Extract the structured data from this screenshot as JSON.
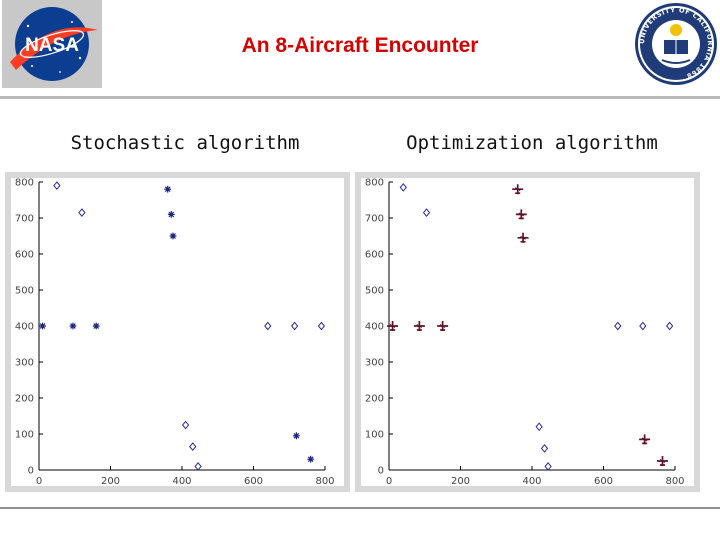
{
  "slide": {
    "title": "An 8-Aircraft Encounter",
    "logo_left_text": "NASA",
    "logo_right_text": "UNIVERSITY OF CALIFORNIA 1868"
  },
  "colors": {
    "title": "#d40000",
    "nasa_blue": "#0b3d91",
    "nasa_red": "#fc3d21",
    "marker_blue": "#1a237e",
    "marker_dark_red": "#6b0f1a"
  },
  "chart_data": [
    {
      "type": "scatter",
      "title": "Stochastic algorithm",
      "xlim": [
        0,
        800
      ],
      "ylim": [
        0,
        800
      ],
      "xticks": [
        0,
        200,
        400,
        600,
        800
      ],
      "yticks": [
        0,
        100,
        200,
        300,
        400,
        500,
        600,
        700,
        800
      ],
      "grid": false,
      "points": [
        {
          "x": 50,
          "y": 790,
          "marker": "diamond"
        },
        {
          "x": 120,
          "y": 715,
          "marker": "diamond"
        },
        {
          "x": 10,
          "y": 400,
          "marker": "star"
        },
        {
          "x": 95,
          "y": 400,
          "marker": "star"
        },
        {
          "x": 160,
          "y": 400,
          "marker": "star"
        },
        {
          "x": 360,
          "y": 780,
          "marker": "star"
        },
        {
          "x": 370,
          "y": 710,
          "marker": "star"
        },
        {
          "x": 375,
          "y": 650,
          "marker": "star"
        },
        {
          "x": 640,
          "y": 400,
          "marker": "diamond"
        },
        {
          "x": 715,
          "y": 400,
          "marker": "diamond"
        },
        {
          "x": 790,
          "y": 400,
          "marker": "diamond"
        },
        {
          "x": 410,
          "y": 125,
          "marker": "diamond"
        },
        {
          "x": 430,
          "y": 65,
          "marker": "diamond"
        },
        {
          "x": 445,
          "y": 10,
          "marker": "diamond"
        },
        {
          "x": 720,
          "y": 95,
          "marker": "star"
        },
        {
          "x": 760,
          "y": 30,
          "marker": "star"
        }
      ]
    },
    {
      "type": "scatter",
      "title": "Optimization algorithm",
      "xlim": [
        0,
        800
      ],
      "ylim": [
        0,
        800
      ],
      "xticks": [
        0,
        200,
        400,
        600,
        800
      ],
      "yticks": [
        0,
        100,
        200,
        300,
        400,
        500,
        600,
        700,
        800
      ],
      "grid": false,
      "points": [
        {
          "x": 40,
          "y": 785,
          "marker": "diamond"
        },
        {
          "x": 105,
          "y": 715,
          "marker": "diamond"
        },
        {
          "x": 10,
          "y": 400,
          "marker": "aircraft"
        },
        {
          "x": 85,
          "y": 400,
          "marker": "aircraft"
        },
        {
          "x": 150,
          "y": 400,
          "marker": "aircraft"
        },
        {
          "x": 360,
          "y": 780,
          "marker": "aircraft"
        },
        {
          "x": 370,
          "y": 710,
          "marker": "aircraft"
        },
        {
          "x": 375,
          "y": 645,
          "marker": "aircraft"
        },
        {
          "x": 640,
          "y": 400,
          "marker": "diamond"
        },
        {
          "x": 710,
          "y": 400,
          "marker": "diamond"
        },
        {
          "x": 785,
          "y": 400,
          "marker": "diamond"
        },
        {
          "x": 420,
          "y": 120,
          "marker": "diamond"
        },
        {
          "x": 435,
          "y": 60,
          "marker": "diamond"
        },
        {
          "x": 445,
          "y": 10,
          "marker": "diamond"
        },
        {
          "x": 715,
          "y": 85,
          "marker": "aircraft"
        },
        {
          "x": 765,
          "y": 25,
          "marker": "aircraft"
        }
      ]
    }
  ]
}
